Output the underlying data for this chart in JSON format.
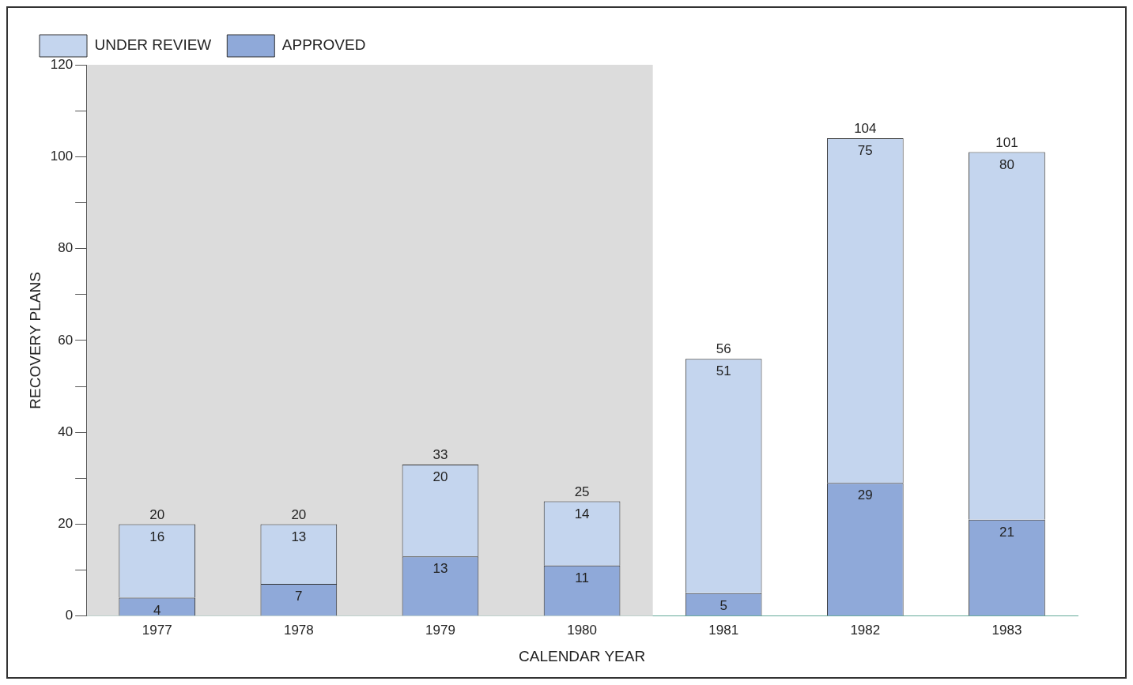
{
  "chart_data": {
    "type": "bar",
    "stacked": true,
    "xlabel": "CALENDAR YEAR",
    "ylabel": "RECOVERY PLANS",
    "categories": [
      "1977",
      "1978",
      "1979",
      "1980",
      "1981",
      "1982",
      "1983"
    ],
    "series": [
      {
        "name": "APPROVED",
        "color": "#8fa9d9",
        "values": [
          4,
          7,
          13,
          11,
          5,
          29,
          21
        ]
      },
      {
        "name": "UNDER REVIEW",
        "color": "#c4d5ee",
        "values": [
          16,
          13,
          20,
          14,
          51,
          75,
          80
        ]
      }
    ],
    "totals": [
      "20",
      "20",
      "33",
      "25",
      "56",
      "104",
      "101"
    ],
    "data_labels": true,
    "ylim": [
      0,
      120
    ],
    "yticks": [
      0,
      {
        "value": 10,
        "label": null
      },
      20,
      {
        "value": 30,
        "label": null
      },
      40,
      {
        "value": 50,
        "label": null
      },
      60,
      {
        "value": 70,
        "label": null
      },
      80,
      {
        "value": 90,
        "label": null
      },
      100,
      {
        "value": 110,
        "label": null
      },
      120
    ],
    "bands": [
      {
        "axis": "x",
        "from": "1977",
        "to": "1980",
        "color": "#dcdcdc"
      }
    ],
    "legend": "top left",
    "grid": false
  }
}
